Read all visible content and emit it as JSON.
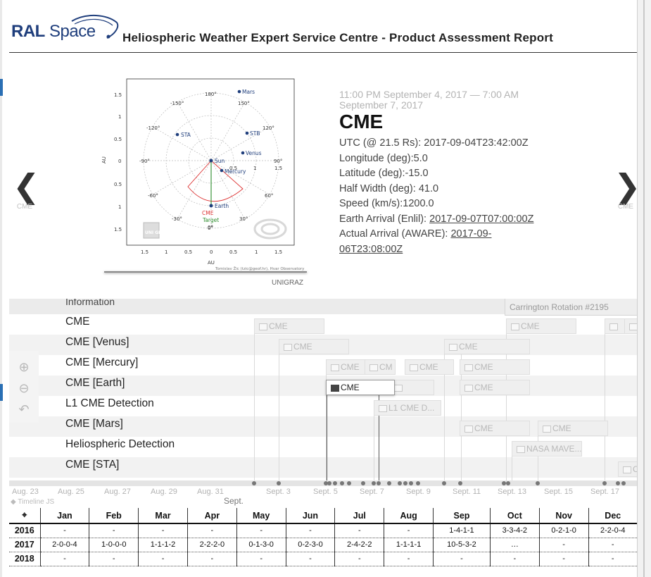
{
  "header": {
    "logo_bold": "RAL",
    "logo_light": "Space",
    "title": "Heliospheric Weather Expert Service Centre - Product Assessment Report"
  },
  "nav": {
    "prev_label": "CME",
    "next_label": "CME",
    "prev_icon": "chevron-left-icon",
    "next_icon": "chevron-right-icon"
  },
  "plot": {
    "planets": [
      "Mars",
      "STB",
      "Venus",
      "Sun",
      "Mercury",
      "STA",
      "Earth",
      "CME",
      "Target"
    ],
    "angle_labels": [
      "180°",
      "150°",
      "120°",
      "90°",
      "60°",
      "30°",
      "0°",
      "-30°",
      "-60°",
      "-90°",
      "-120°",
      "-150°"
    ],
    "radial_labels": [
      "0.5",
      "1",
      "1.5"
    ],
    "y_ticks": [
      "1.5",
      "1",
      "0.5",
      "0",
      "0.5",
      "1",
      "1.5"
    ],
    "x_ticks": [
      "1.5",
      "1",
      "0.5",
      "0",
      "0.5",
      "1",
      "1.5"
    ],
    "axis_label": "AU",
    "watermark": "UNI GRAZ",
    "footnote": "Tomislav Žic (tzic@geof.hr), Hvar Observatory",
    "credit": "UNIGRAZ"
  },
  "event": {
    "date_range": "11:00 PM September 4, 2017 — 7:00 AM September 7, 2017",
    "title": "CME",
    "utc": "UTC (@ 21.5 Rs): 2017-09-04T23:42:00Z",
    "longitude": "Longitude (deg):5.0",
    "latitude": "Latitude (deg):-15.0",
    "half_width": "Half Width (deg): 41.0",
    "speed": "Speed (km/s):1200.0",
    "earth_arrival_label": "Earth Arrival (Enlil): ",
    "earth_arrival_value": "2017-09-07T07:00:00Z",
    "actual_arrival_label": "Actual Arrival (AWARE): ",
    "actual_arrival_value_1": "2017-09-",
    "actual_arrival_value_2": "06T23:08:00Z"
  },
  "timeline": {
    "header_label": "Information",
    "carrington": "Carrington Rotation #2195",
    "rows": [
      "CME",
      "CME [Venus]",
      "CME [Mercury]",
      "CME [Earth]",
      "L1 CME Detection",
      "CME [Mars]",
      "Heliospheric Detection",
      "CME [STA]"
    ],
    "events": {
      "cme": "CME",
      "cme_short": "CM",
      "l1": "L1 CME D...",
      "nasa": "NASA MAVE...",
      "cut": "C"
    },
    "ticks": [
      "Aug. 23",
      "Aug. 25",
      "Aug. 27",
      "Aug. 29",
      "Aug. 31",
      "Sept. 3",
      "Sept. 5",
      "Sept. 7",
      "Sept. 9",
      "Sept. 11",
      "Sept. 13",
      "Sept. 15",
      "Sept. 17"
    ],
    "month_label": "Sept.",
    "credit": "Timeline JS"
  },
  "table": {
    "headers": [
      "",
      "Jan",
      "Feb",
      "Mar",
      "Apr",
      "May",
      "Jun",
      "Jul",
      "Aug",
      "Sep",
      "Oct",
      "Nov",
      "Dec"
    ],
    "corner_icon": "crosshair-icon",
    "rows": [
      [
        "2016",
        "-",
        "-",
        "-",
        "-",
        "-",
        "-",
        "-",
        "-",
        "1-4-1-1",
        "3-3-4-2",
        "0-2-1-0",
        "2-2-0-4"
      ],
      [
        "2017",
        "2-0-0-4",
        "1-0-0-0",
        "1-1-1-2",
        "2-2-2-0",
        "0-1-3-0",
        "0-2-3-0",
        "2-4-2-2",
        "1-1-1-1",
        "10-5-3-2",
        "…",
        "-",
        "-"
      ],
      [
        "2018",
        "-",
        "-",
        "-",
        "-",
        "-",
        "-",
        "-",
        "-",
        "-",
        "-",
        "-",
        "-"
      ]
    ]
  }
}
